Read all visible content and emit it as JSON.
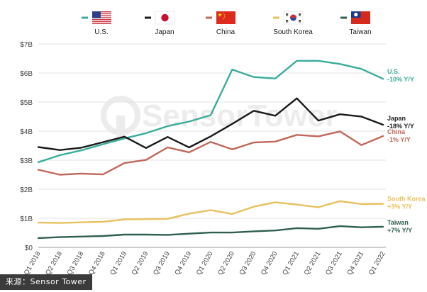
{
  "source": {
    "text": "来源：Sensor Tower"
  },
  "watermark": {
    "text": "SensorTower"
  },
  "chart_data": {
    "type": "line",
    "yaxis": {
      "ylim": [
        0,
        7
      ],
      "tick_values": [
        0,
        1,
        2,
        3,
        4,
        5,
        6,
        7
      ],
      "tick_labels": [
        "$0",
        "$1B",
        "$2B",
        "$3B",
        "$4B",
        "$5B",
        "$6B",
        "$7B"
      ]
    },
    "grid": "horizontal",
    "legend_placement": "top",
    "categories": [
      "Q1 2018",
      "Q2 2018",
      "Q3 2018",
      "Q4 2018",
      "Q1 2019",
      "Q2 2019",
      "Q3 2019",
      "Q4 2019",
      "Q1 2020",
      "Q2 2020",
      "Q3 2020",
      "Q4 2020",
      "Q1 2021",
      "Q2 2021",
      "Q3 2021",
      "Q4 2021",
      "Q1 2022"
    ],
    "series": [
      {
        "name": "U.S.",
        "color": "#3aac9c",
        "flag": "us-flag",
        "end_label": "U.S.",
        "end_change": "-10% Y/Y",
        "values": [
          2.93,
          3.17,
          3.34,
          3.55,
          3.75,
          3.93,
          4.17,
          4.33,
          4.55,
          6.12,
          5.86,
          5.81,
          6.42,
          6.42,
          6.31,
          6.14,
          5.8
        ]
      },
      {
        "name": "Japan",
        "color": "#1a1a1a",
        "flag": "japan-flag",
        "end_label": "Japan",
        "end_change": "-18% Y/Y",
        "values": [
          3.45,
          3.35,
          3.43,
          3.62,
          3.81,
          3.42,
          3.8,
          3.44,
          3.82,
          4.25,
          4.7,
          4.53,
          5.13,
          4.36,
          4.58,
          4.5,
          4.22
        ]
      },
      {
        "name": "China",
        "color": "#c0685a",
        "flag": "china-flag",
        "end_label": "China",
        "end_change": "-1% Y/Y",
        "values": [
          2.67,
          2.5,
          2.54,
          2.51,
          2.9,
          3.01,
          3.44,
          3.27,
          3.63,
          3.37,
          3.61,
          3.64,
          3.87,
          3.82,
          3.99,
          3.52,
          3.83
        ]
      },
      {
        "name": "South Korea",
        "color": "#e7c15d",
        "flag": "south-korea-flag",
        "end_label": "South Korea",
        "end_change": "+3% Y/Y",
        "values": [
          0.85,
          0.84,
          0.86,
          0.88,
          0.96,
          0.97,
          0.98,
          1.16,
          1.28,
          1.15,
          1.4,
          1.55,
          1.47,
          1.38,
          1.59,
          1.49,
          1.5
        ]
      },
      {
        "name": "Taiwan",
        "color": "#2f5f4d",
        "flag": "taiwan-flag",
        "end_label": "Taiwan",
        "end_change": "+7% Y/Y",
        "values": [
          0.32,
          0.35,
          0.37,
          0.39,
          0.44,
          0.44,
          0.43,
          0.47,
          0.51,
          0.51,
          0.55,
          0.58,
          0.66,
          0.64,
          0.73,
          0.69,
          0.71
        ]
      }
    ]
  }
}
